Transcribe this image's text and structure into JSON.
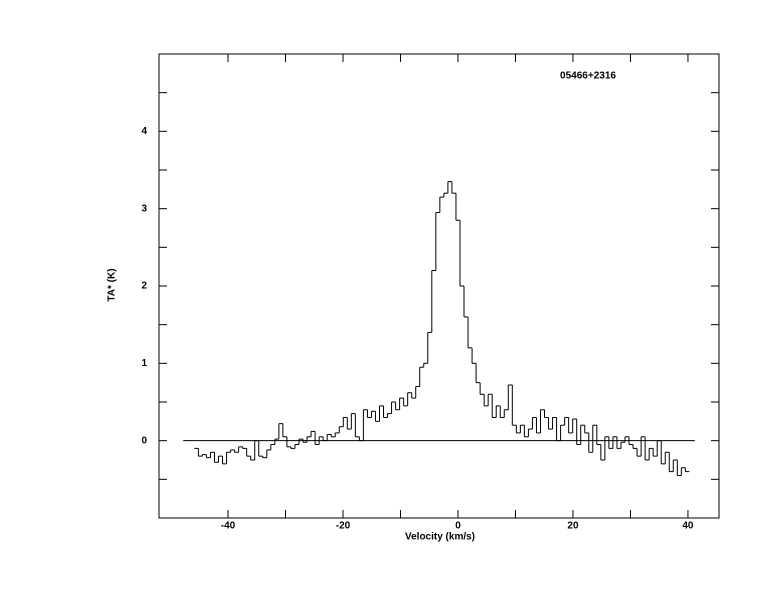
{
  "chart_data": {
    "type": "step",
    "title": "05466+2316",
    "xlabel": "Velocity (km/s)",
    "ylabel": "TA* (K)",
    "xlim": [
      -52,
      45.4
    ],
    "ylim": [
      -1,
      5
    ],
    "xticks": [
      -40,
      -20,
      0,
      20,
      40
    ],
    "yticks": [
      0,
      1,
      2,
      3,
      4
    ],
    "x_minor_ticks": [
      -30,
      -10,
      10,
      30
    ],
    "y_minor_ticks": [
      -0.5,
      0.5,
      1.5,
      2.5,
      3.5,
      4.5
    ],
    "baseline": {
      "y": 0,
      "xmin": -47.8,
      "xmax": 41.2
    },
    "color": "#000000",
    "x": [
      -45.5,
      -44.8,
      -44.1,
      -43.4,
      -42.7,
      -42.0,
      -41.3,
      -40.6,
      -39.9,
      -39.2,
      -38.5,
      -37.8,
      -37.1,
      -36.4,
      -35.7,
      -35.0,
      -34.3,
      -33.6,
      -32.9,
      -32.2,
      -31.5,
      -30.8,
      -30.1,
      -29.4,
      -28.7,
      -28.0,
      -27.3,
      -26.6,
      -25.9,
      -25.2,
      -24.5,
      -23.8,
      -23.1,
      -22.4,
      -21.7,
      -21.0,
      -20.3,
      -19.6,
      -18.9,
      -18.2,
      -17.5,
      -16.8,
      -16.1,
      -15.4,
      -14.7,
      -14.0,
      -13.3,
      -12.6,
      -11.9,
      -11.2,
      -10.5,
      -9.8,
      -9.1,
      -8.4,
      -7.7,
      -7.0,
      -6.3,
      -5.6,
      -4.9,
      -4.2,
      -3.5,
      -2.8,
      -2.1,
      -1.4,
      -0.7,
      0.0,
      0.7,
      1.4,
      2.1,
      2.8,
      3.5,
      4.2,
      4.9,
      5.6,
      6.3,
      7.0,
      7.7,
      8.4,
      9.1,
      9.8,
      10.5,
      11.2,
      11.9,
      12.6,
      13.3,
      14.0,
      14.7,
      15.4,
      16.1,
      16.8,
      17.5,
      18.2,
      18.9,
      19.6,
      20.3,
      21.0,
      21.7,
      22.4,
      23.1,
      23.8,
      24.5,
      25.2,
      25.9,
      26.6,
      27.3,
      28.0,
      28.7,
      29.4,
      30.1,
      30.8,
      31.5,
      32.2,
      32.9,
      33.6,
      34.3,
      35.0,
      35.7,
      36.4,
      37.1,
      37.8,
      38.5,
      39.2,
      39.9
    ],
    "values": [
      -0.1,
      -0.2,
      -0.18,
      -0.22,
      -0.15,
      -0.28,
      -0.2,
      -0.3,
      -0.15,
      -0.12,
      -0.15,
      -0.08,
      -0.1,
      -0.2,
      -0.25,
      0.0,
      -0.2,
      -0.22,
      -0.12,
      -0.05,
      0.02,
      0.22,
      0.05,
      -0.08,
      -0.1,
      -0.05,
      0.02,
      -0.02,
      0.05,
      0.12,
      -0.05,
      0.05,
      0.0,
      0.08,
      0.05,
      0.1,
      0.18,
      0.3,
      0.15,
      0.35,
      0.05,
      0.0,
      0.4,
      0.3,
      0.38,
      0.25,
      0.45,
      0.3,
      0.35,
      0.5,
      0.4,
      0.55,
      0.45,
      0.62,
      0.55,
      0.7,
      0.95,
      1.0,
      1.4,
      2.2,
      2.95,
      3.15,
      3.2,
      3.35,
      3.2,
      2.85,
      2.0,
      1.6,
      1.2,
      1.0,
      0.75,
      0.6,
      0.45,
      0.6,
      0.3,
      0.45,
      0.3,
      0.4,
      0.72,
      0.2,
      0.1,
      0.2,
      0.05,
      0.15,
      0.3,
      0.1,
      0.4,
      0.3,
      0.15,
      0.3,
      0.0,
      0.2,
      0.3,
      0.1,
      0.28,
      -0.05,
      0.2,
      0.1,
      -0.15,
      0.2,
      -0.05,
      -0.25,
      0.05,
      -0.1,
      0.05,
      -0.1,
      -0.02,
      0.05,
      -0.05,
      -0.1,
      -0.2,
      0.05,
      -0.25,
      -0.1,
      -0.2,
      0.0,
      -0.3,
      -0.15,
      -0.4,
      -0.25,
      -0.45,
      -0.35,
      -0.4
    ]
  }
}
